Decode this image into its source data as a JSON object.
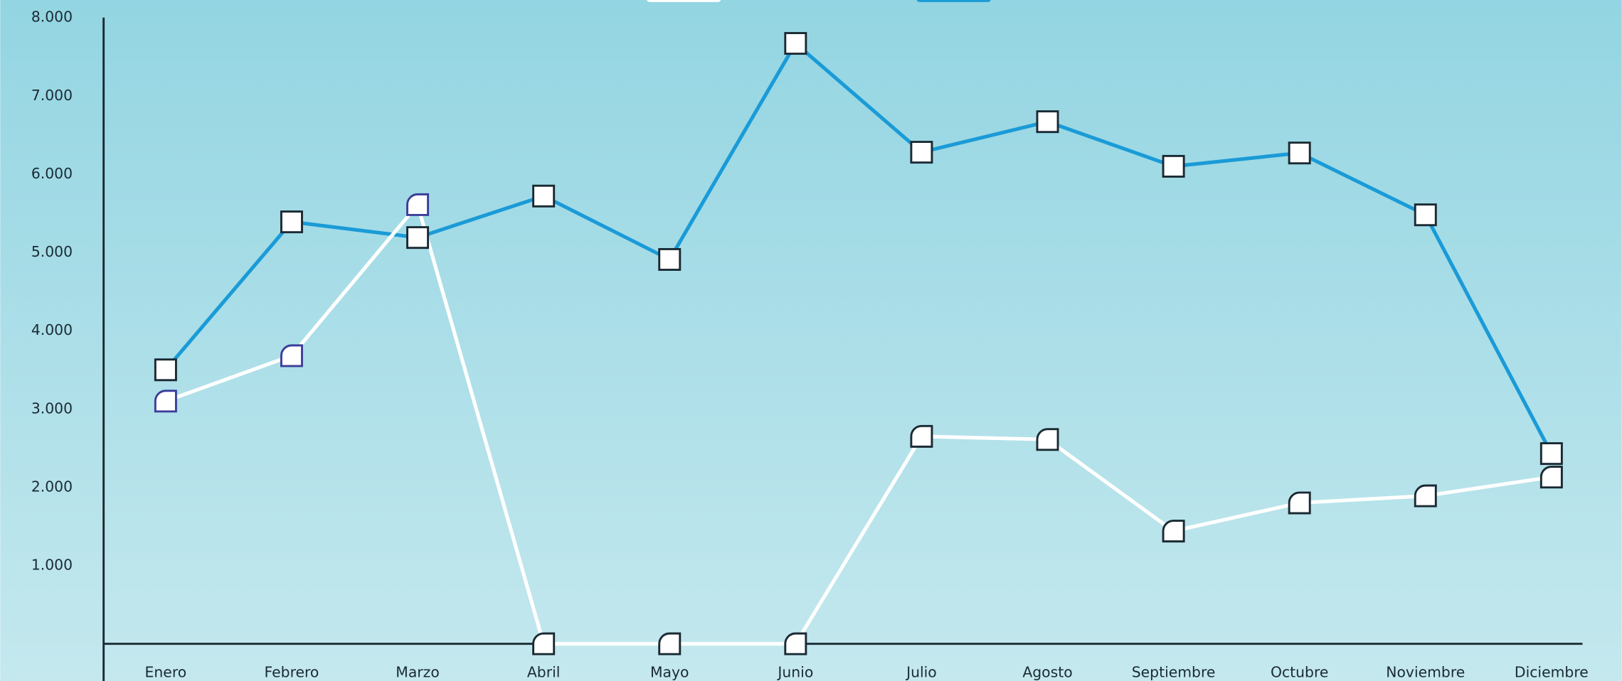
{
  "chart_data": {
    "type": "line",
    "categories": [
      "Enero",
      "Febrero",
      "Marzo",
      "Abril",
      "Mayo",
      "Junio",
      "Julio",
      "Agosto",
      "Septiembre",
      "Octubre",
      "Noviembre",
      "Diciembre"
    ],
    "series": [
      {
        "color": "#1a9bd7",
        "values": [
          3500,
          5390,
          5190,
          5720,
          4910,
          7670,
          6280,
          6670,
          6100,
          6270,
          5480,
          2430
        ]
      },
      {
        "color": "#ffffff",
        "values": [
          3100,
          3680,
          5610,
          0,
          0,
          0,
          2650,
          2610,
          1440,
          1800,
          1890,
          2130
        ]
      }
    ],
    "ylim": [
      0,
      8000
    ],
    "yticks": [
      {
        "value": 1000,
        "label": "1.000"
      },
      {
        "value": 2000,
        "label": "2.000"
      },
      {
        "value": 3000,
        "label": "3.000"
      },
      {
        "value": 4000,
        "label": "4.000"
      },
      {
        "value": 5000,
        "label": "5.000"
      },
      {
        "value": 6000,
        "label": "6.000"
      },
      {
        "value": 7000,
        "label": "7.000"
      },
      {
        "value": 8000,
        "label": "8.000"
      }
    ]
  }
}
